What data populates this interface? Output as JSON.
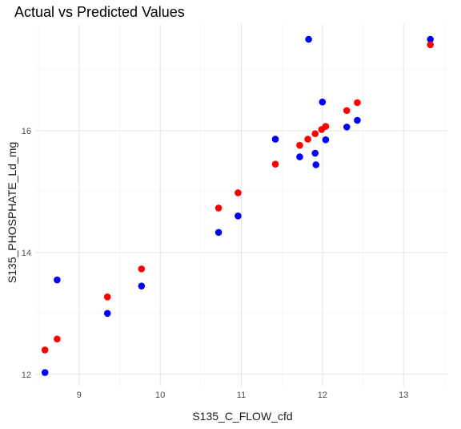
{
  "chart_data": {
    "type": "scatter",
    "title": "Actual vs Predicted Values",
    "xlabel": "S135_C_FLOW_cfd",
    "ylabel": "S135_PHOSPHATE_Ld_mg",
    "xlim": [
      8.45,
      13.55
    ],
    "ylim": [
      11.8,
      17.75
    ],
    "x_ticks": [
      9,
      10,
      11,
      12,
      13
    ],
    "y_ticks": [
      12,
      14,
      16
    ],
    "grid": true,
    "legend": "none",
    "series": [
      {
        "color": "#0000ff",
        "points": [
          [
            8.58,
            12.03
          ],
          [
            8.73,
            13.55
          ],
          [
            9.35,
            13.0
          ],
          [
            9.77,
            13.45
          ],
          [
            10.72,
            14.33
          ],
          [
            10.96,
            14.6
          ],
          [
            11.42,
            15.86
          ],
          [
            11.72,
            15.57
          ],
          [
            11.83,
            17.5
          ],
          [
            11.91,
            15.63
          ],
          [
            11.92,
            15.44
          ],
          [
            12.0,
            16.47
          ],
          [
            12.04,
            15.85
          ],
          [
            12.3,
            16.06
          ],
          [
            12.43,
            16.17
          ],
          [
            13.33,
            17.5
          ]
        ]
      },
      {
        "color": "#ff0000",
        "points": [
          [
            8.58,
            12.4
          ],
          [
            8.73,
            12.58
          ],
          [
            9.35,
            13.27
          ],
          [
            9.77,
            13.73
          ],
          [
            10.72,
            14.73
          ],
          [
            10.96,
            14.98
          ],
          [
            11.42,
            15.45
          ],
          [
            11.72,
            15.76
          ],
          [
            11.82,
            15.86
          ],
          [
            11.91,
            15.95
          ],
          [
            11.99,
            16.02
          ],
          [
            12.04,
            16.07
          ],
          [
            12.3,
            16.33
          ],
          [
            12.43,
            16.46
          ],
          [
            13.33,
            17.41
          ]
        ]
      }
    ]
  }
}
